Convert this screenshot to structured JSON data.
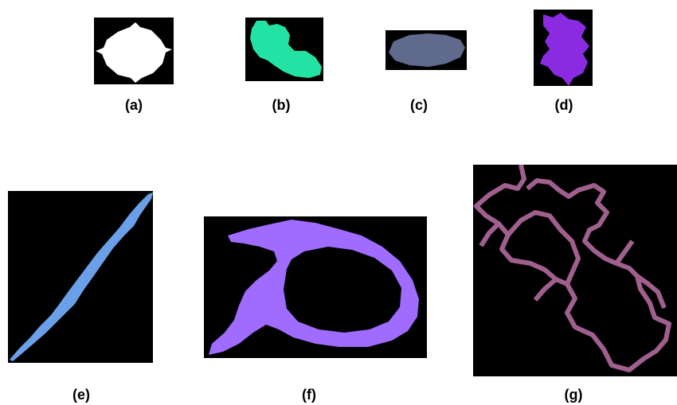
{
  "figure": {
    "panels": [
      {
        "label": "(a)",
        "shape": "blob-oval",
        "color": "#ffffff"
      },
      {
        "label": "(b)",
        "shape": "blob-bird",
        "color": "#22e3a4"
      },
      {
        "label": "(c)",
        "shape": "flat-ellipse",
        "color": "#5f6a8c"
      },
      {
        "label": "(d)",
        "shape": "irregular-blob",
        "color": "#8a2be2"
      },
      {
        "label": "(e)",
        "shape": "diagonal-streak",
        "color": "#6aa0e8"
      },
      {
        "label": "(f)",
        "shape": "ring-outline",
        "color": "#a06bff"
      },
      {
        "label": "(g)",
        "shape": "network-outline",
        "color": "#a0608e"
      }
    ]
  }
}
